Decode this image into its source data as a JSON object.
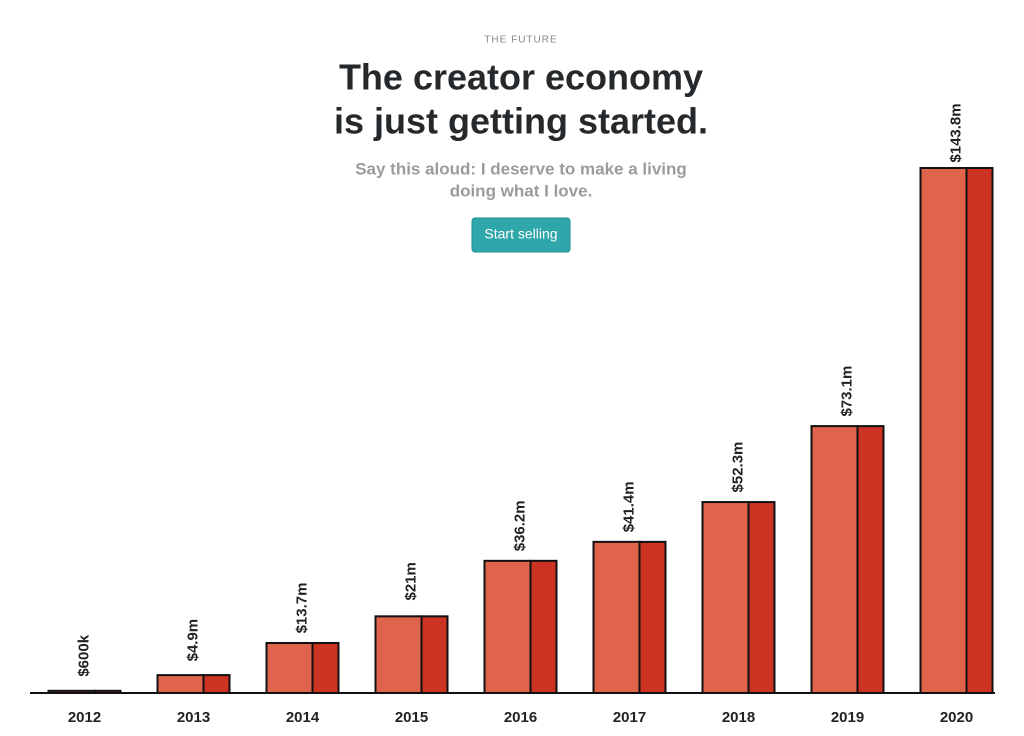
{
  "eyebrow": "THE FUTURE",
  "headline": [
    "The creator economy",
    "is just getting started."
  ],
  "subtitle": [
    "Say this aloud: I deserve to make a living",
    "doing what I love."
  ],
  "button": "Start selling",
  "chart_data": {
    "type": "bar",
    "categories": [
      "2012",
      "2013",
      "2014",
      "2015",
      "2016",
      "2017",
      "2018",
      "2019",
      "2020"
    ],
    "values": [
      0.6,
      4.9,
      13.7,
      21,
      36.2,
      41.4,
      52.3,
      73.1,
      143.8
    ],
    "value_labels": [
      "$600k",
      "$4.9m",
      "$13.7m",
      "$21m",
      "$36.2m",
      "$41.4m",
      "$52.3m",
      "$73.1m",
      "$143.8m"
    ],
    "color": "#e0644b"
  }
}
